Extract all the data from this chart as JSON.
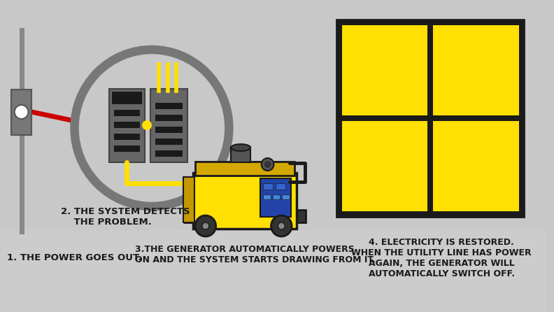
{
  "bg_color": "#c8c8c8",
  "floor_color": "#cccccc",
  "text_color": "#111111",
  "yellow": "#FFE000",
  "dark_gray": "#555555",
  "mid_gray": "#888888",
  "black": "#1a1a1a",
  "red": "#cc0000",
  "gray_ring": "#777777",
  "panel_gray": "#666666",
  "panel_edge": "#444444",
  "label1": "1. THE POWER GOES OUT.",
  "label2": "2. THE SYSTEM DETECTS\n    THE PROBLEM.",
  "label3": "3.THE GENERATOR AUTOMATICALLY POWERS\nON AND THE SYSTEM STARTS DRAWING FROM IT.",
  "label4": "4. ELECTRICITY IS RESTORED.\nWHEN THE UTILITY LINE HAS POWER\nAGAIN, THE GENERATOR WILL\nAUTOMATICALLY SWITCH OFF."
}
